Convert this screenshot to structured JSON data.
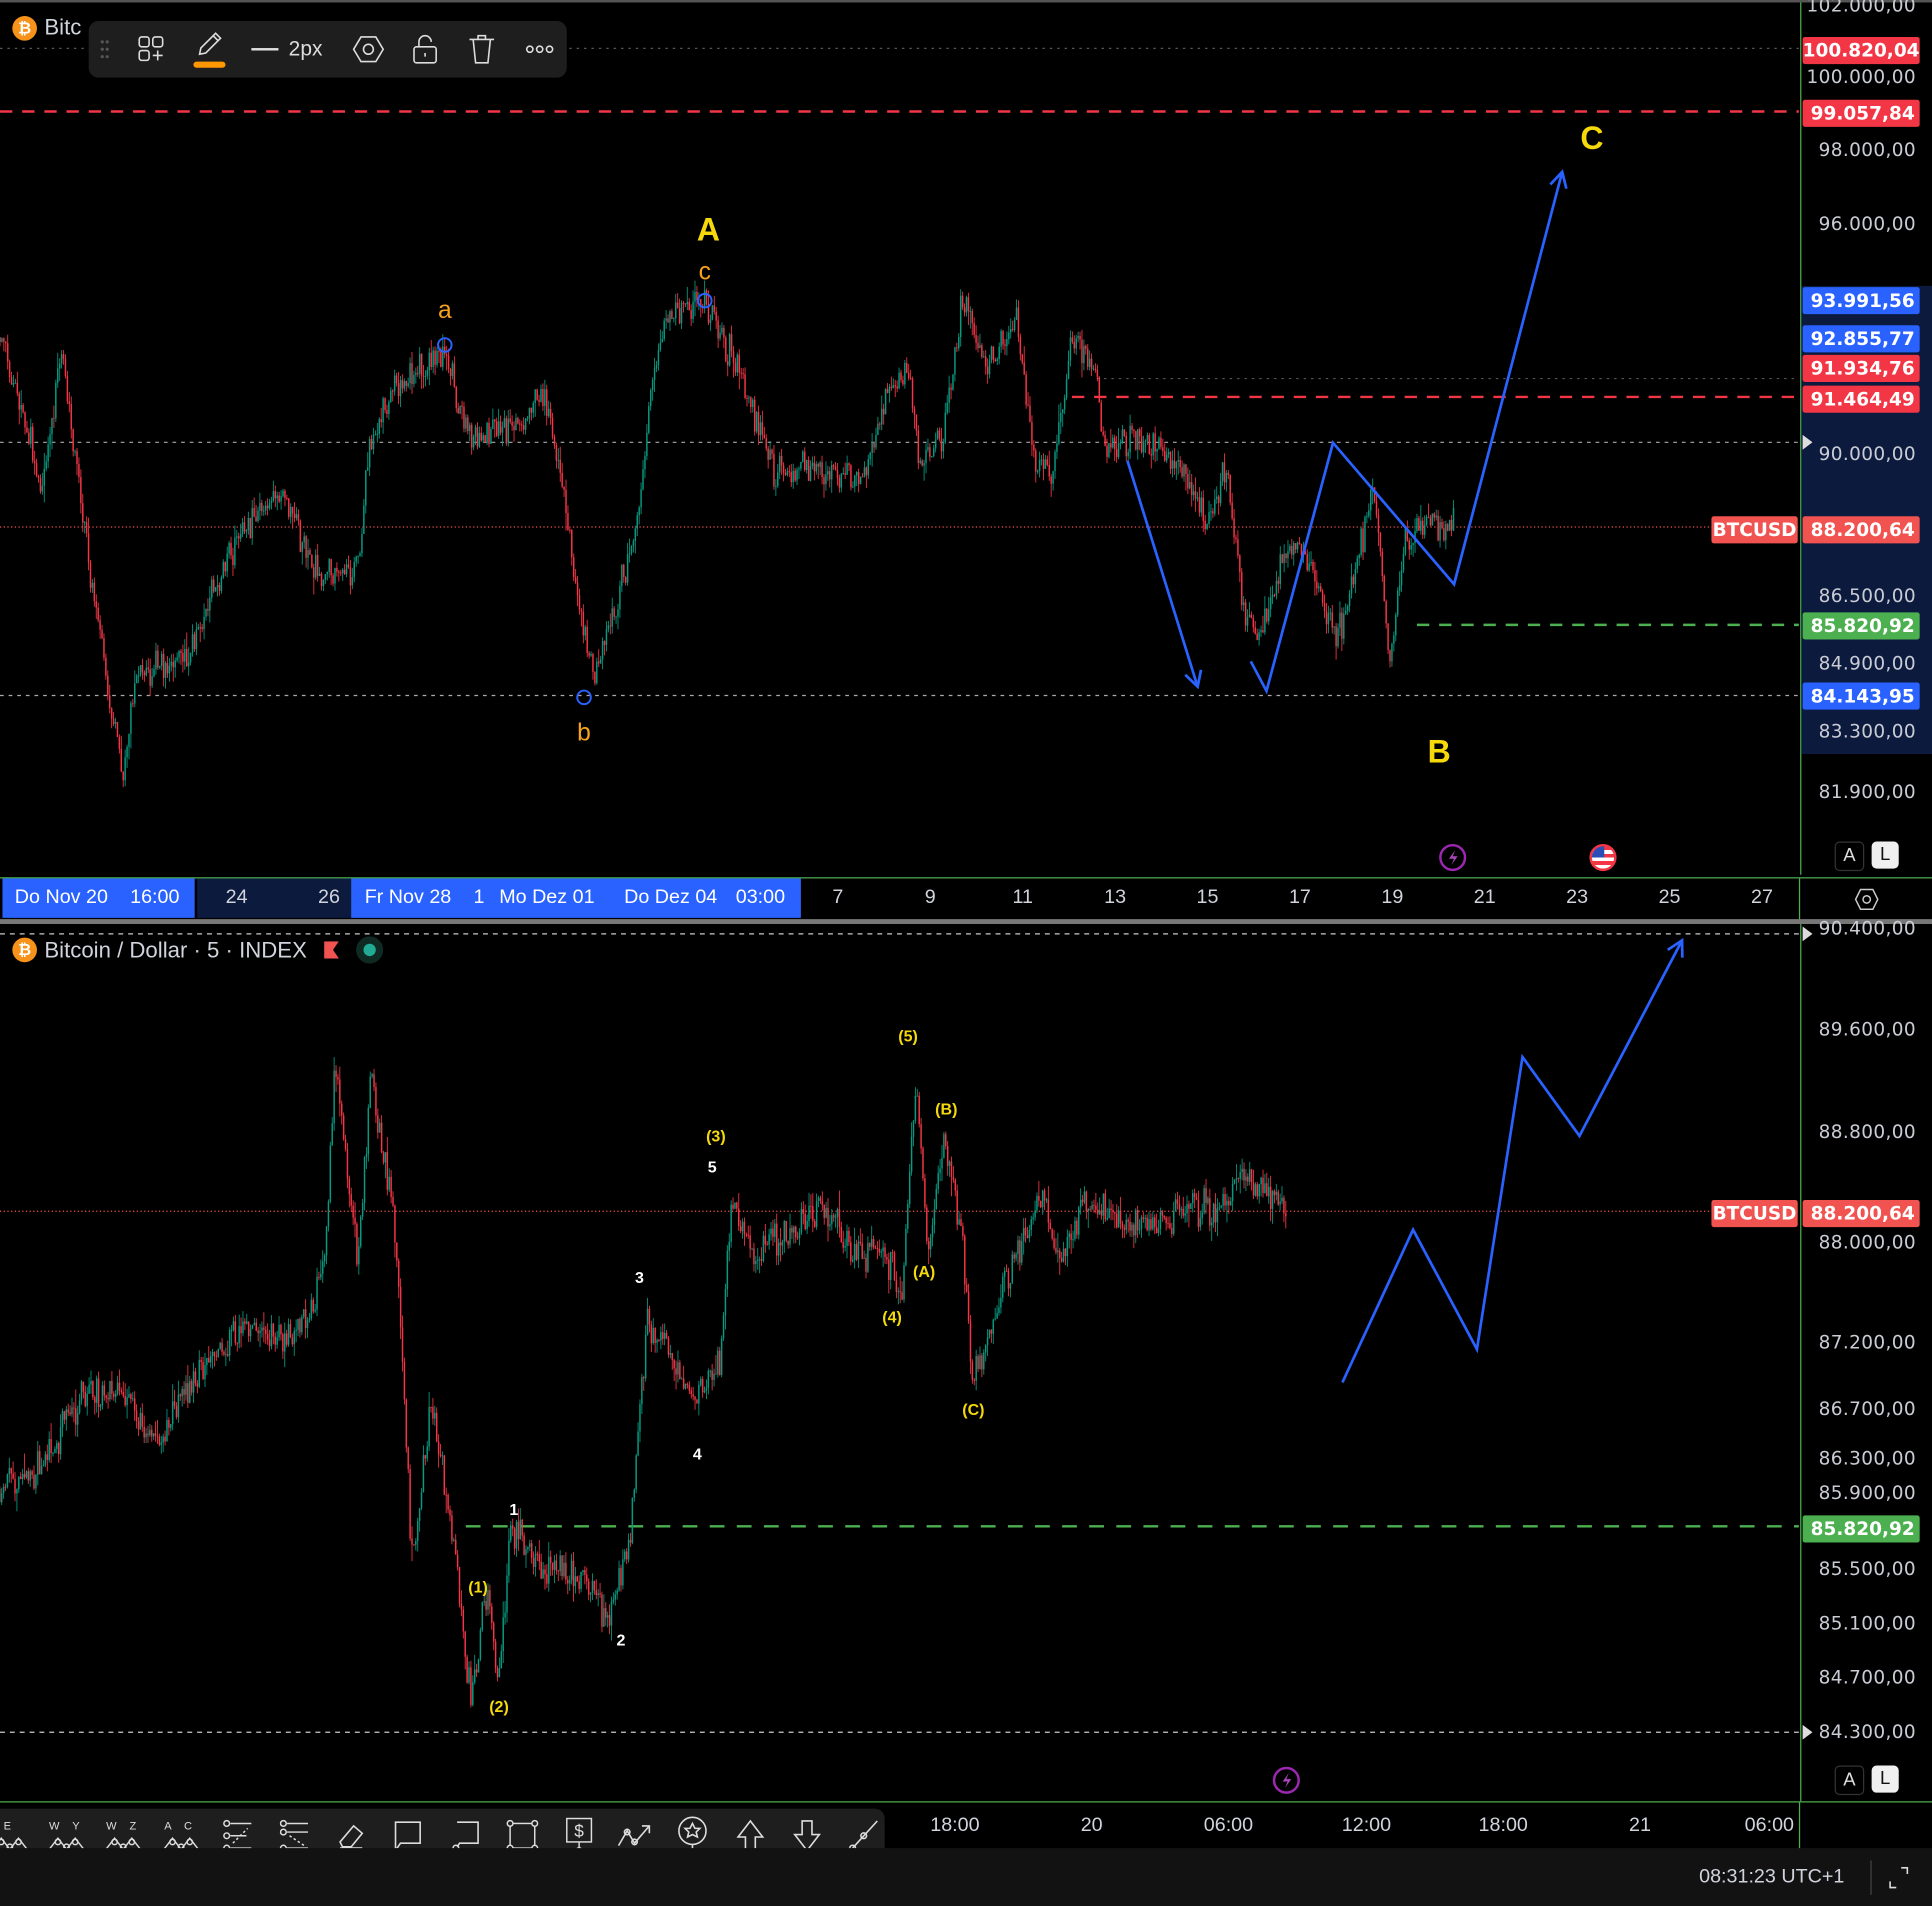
{
  "colors": {
    "up": "#089981",
    "down": "#f23645",
    "projection": "#2962ff",
    "label_orange": "#f7a21b",
    "label_yellow": "#f5d90a",
    "alert_red": "#f23645",
    "target_green": "#4caf50",
    "current_price": "#f05350"
  },
  "top_chart": {
    "legend_title": "Bitc",
    "toolbar": {
      "line_width_label": "2px",
      "icons": [
        "drag-handle-icon",
        "add-objects-icon",
        "pencil-icon",
        "line-style-icon",
        "settings-icon",
        "unlock-icon",
        "trash-icon",
        "more-icon"
      ]
    },
    "price_ticks": [
      "102.000,00",
      "100.000,00",
      "98.000,00",
      "96.000,00",
      "90.000,00",
      "86.500,00",
      "84.900,00",
      "83.300,00",
      "81.900,00"
    ],
    "price_labels": {
      "p100820": "100.820,04",
      "p99057": "99.057,84",
      "p93991": "93.991,56",
      "p92855": "92.855,77",
      "p91934": "91.934,76",
      "p91464": "91.464,49",
      "p85820": "85.820,92",
      "p84143": "84.143,95"
    },
    "symbol": "BTCUSD",
    "current_price": "88.200,64",
    "time_highlight_1": [
      "Do Nov 20",
      "16:00"
    ],
    "time_ticks_navy": [
      "24",
      "26"
    ],
    "time_highlight_2": [
      "Fr Nov 28",
      "1",
      "Mo Dez 01",
      "Do Dez 04",
      "03:00"
    ],
    "time_ticks": [
      "7",
      "9",
      "11",
      "13",
      "15",
      "17",
      "19",
      "21",
      "23",
      "25",
      "27"
    ],
    "scale_buttons": {
      "auto": "A",
      "log": "L"
    },
    "wave_labels": {
      "a": "a",
      "b": "b",
      "c": "c",
      "A": "A",
      "B": "B",
      "C": "C"
    },
    "levels": {
      "red_dashed_1": 99057.84,
      "red_dashed_2": 91464.49,
      "gray_dotted": 91934.76,
      "green_dashed": 85820.92,
      "blue_dotted": 84143.95,
      "top_dotted": 100820.04,
      "current": 88200.64
    },
    "price_path_days_since_nov20": [
      [
        -1.12,
        93000
      ],
      [
        -0.19,
        89100
      ],
      [
        0.21,
        92700
      ],
      [
        0.88,
        86600
      ],
      [
        1.55,
        82100
      ],
      [
        1.81,
        84600
      ],
      [
        2.88,
        85000
      ],
      [
        3.95,
        87800
      ],
      [
        4.96,
        89100
      ],
      [
        5.81,
        87000
      ],
      [
        6.61,
        87000
      ],
      [
        6.88,
        90200
      ],
      [
        7.28,
        91500
      ],
      [
        8.48,
        92700
      ],
      [
        9.01,
        90600
      ],
      [
        10.08,
        90600
      ],
      [
        10.61,
        91800
      ],
      [
        11.09,
        89100
      ],
      [
        11.41,
        86300
      ],
      [
        11.73,
        84600
      ],
      [
        12.21,
        86300
      ],
      [
        12.69,
        88400
      ],
      [
        13.01,
        92100
      ],
      [
        13.41,
        93700
      ],
      [
        14.13,
        93900
      ],
      [
        14.88,
        92100
      ],
      [
        15.68,
        89400
      ],
      [
        16.21,
        89700
      ],
      [
        17.55,
        89400
      ],
      [
        18.03,
        91500
      ],
      [
        18.56,
        92100
      ],
      [
        18.75,
        89900
      ],
      [
        19.28,
        90300
      ],
      [
        19.73,
        94000
      ],
      [
        20.21,
        92400
      ],
      [
        20.88,
        93400
      ],
      [
        21.28,
        89700
      ],
      [
        21.68,
        89700
      ],
      [
        22.08,
        93000
      ],
      [
        22.61,
        92100
      ],
      [
        22.75,
        90200
      ],
      [
        23.68,
        90300
      ],
      [
        24.48,
        89700
      ],
      [
        25.01,
        88200
      ],
      [
        25.41,
        89700
      ],
      [
        25.81,
        86000
      ],
      [
        26.21,
        85700
      ],
      [
        26.75,
        87800
      ],
      [
        27.15,
        87500
      ],
      [
        27.55,
        86300
      ],
      [
        27.81,
        85500
      ],
      [
        28.21,
        87200
      ],
      [
        28.61,
        89100
      ],
      [
        28.96,
        84900
      ],
      [
        29.28,
        87800
      ],
      [
        29.81,
        88400
      ],
      [
        30.35,
        88200
      ]
    ],
    "projection_1": [
      [
        23.28,
        89850
      ],
      [
        24.8,
        84350
      ]
    ],
    "projection_2": [
      [
        25.95,
        84950
      ],
      [
        26.29,
        84250
      ],
      [
        27.73,
        90300
      ],
      [
        30.35,
        86800
      ],
      [
        32.69,
        97400
      ]
    ]
  },
  "bottom_chart": {
    "legend_title": "Bitcoin / Dollar · 5 · INDEX",
    "price_ticks": [
      "90.400,00",
      "89.600,00",
      "88.800,00",
      "88.000,00",
      "87.200,00",
      "86.700,00",
      "86.300,00",
      "85.900,00",
      "85.500,00",
      "85.100,00",
      "84.700,00",
      "84.300,00"
    ],
    "symbol": "BTCUSD",
    "current_price": "88.200,64",
    "target_label": "85.820,92",
    "time_ticks": [
      "18:00",
      "20",
      "06:00",
      "12:00",
      "18:00",
      "21",
      "06:00"
    ],
    "scale_buttons": {
      "auto": "A",
      "log": "L"
    },
    "wave_labels": {
      "p1": "(1)",
      "p2": "(2)",
      "w1": "1",
      "w2": "2",
      "w3": "3",
      "w4": "4",
      "w5": "5",
      "p3": "(3)",
      "p4": "(4)",
      "p5": "(5)",
      "pA": "(A)",
      "pB": "(B)",
      "pC": "(C)"
    },
    "levels": {
      "green_dashed": 85820.92,
      "current": 88200.64
    },
    "price_path_hours_from_dec20": [
      [
        -47.9,
        86100
      ],
      [
        -46.3,
        86200
      ],
      [
        -44.6,
        86740
      ],
      [
        -42.8,
        86850
      ],
      [
        -40.9,
        86430
      ],
      [
        -39.8,
        86850
      ],
      [
        -37.6,
        87300
      ],
      [
        -36.5,
        87340
      ],
      [
        -35.5,
        87200
      ],
      [
        -34.1,
        87480
      ],
      [
        -33.6,
        88000
      ],
      [
        -33.2,
        89350
      ],
      [
        -32.2,
        87850
      ],
      [
        -31.6,
        89250
      ],
      [
        -30.6,
        88200
      ],
      [
        -29.8,
        85540
      ],
      [
        -29.0,
        86740
      ],
      [
        -28.2,
        86000
      ],
      [
        -27.2,
        84540
      ],
      [
        -26.5,
        85360
      ],
      [
        -26.0,
        84630
      ],
      [
        -25.5,
        85820
      ],
      [
        -24.1,
        85540
      ],
      [
        -22.5,
        85450
      ],
      [
        -21.1,
        85180
      ],
      [
        -20.3,
        85640
      ],
      [
        -19.5,
        87390
      ],
      [
        -18.7,
        87200
      ],
      [
        -17.4,
        86740
      ],
      [
        -16.3,
        87100
      ],
      [
        -15.8,
        88290
      ],
      [
        -14.9,
        87850
      ],
      [
        -13.3,
        88000
      ],
      [
        -11.9,
        88240
      ],
      [
        -10.6,
        87950
      ],
      [
        -9.0,
        87850
      ],
      [
        -8.3,
        87570
      ],
      [
        -7.7,
        89250
      ],
      [
        -7.2,
        87850
      ],
      [
        -6.5,
        88790
      ],
      [
        -5.7,
        88000
      ],
      [
        -5.2,
        86930
      ],
      [
        -4.4,
        87300
      ],
      [
        -3.6,
        87760
      ],
      [
        -2.2,
        88290
      ],
      [
        -1.4,
        87850
      ],
      [
        -0.3,
        88290
      ],
      [
        1.3,
        88100
      ],
      [
        2.9,
        88100
      ],
      [
        4.5,
        88240
      ],
      [
        5.6,
        88200
      ],
      [
        6.7,
        88480
      ],
      [
        7.8,
        88290
      ],
      [
        8.6,
        88200
      ]
    ],
    "projection": [
      [
        11.0,
        86900
      ],
      [
        14.1,
        88060
      ],
      [
        16.9,
        87150
      ],
      [
        18.9,
        89390
      ],
      [
        21.4,
        88780
      ],
      [
        25.9,
        90300
      ]
    ]
  },
  "drawing_toolbar": {
    "tools": [
      {
        "name": "elliott-impulse",
        "letters": "E"
      },
      {
        "name": "elliott-triple-combo",
        "letters": "W Y"
      },
      {
        "name": "elliott-triple-combo-wz",
        "letters": "W Z"
      },
      {
        "name": "elliott-correction",
        "letters": "A C"
      },
      {
        "name": "fib-retracement",
        "letters": ""
      },
      {
        "name": "fib-extension",
        "letters": ""
      },
      {
        "name": "eraser",
        "letters": ""
      },
      {
        "name": "callout",
        "letters": ""
      },
      {
        "name": "comment",
        "letters": ""
      },
      {
        "name": "rectangle",
        "letters": ""
      },
      {
        "name": "price-label",
        "letters": "$"
      },
      {
        "name": "trend-arrow",
        "letters": ""
      },
      {
        "name": "pin",
        "letters": ""
      },
      {
        "name": "arrow-up",
        "letters": ""
      },
      {
        "name": "arrow-down",
        "letters": ""
      },
      {
        "name": "ray",
        "letters": ""
      }
    ]
  },
  "status_bar": {
    "clock": "08:31:23 UTC+1"
  }
}
